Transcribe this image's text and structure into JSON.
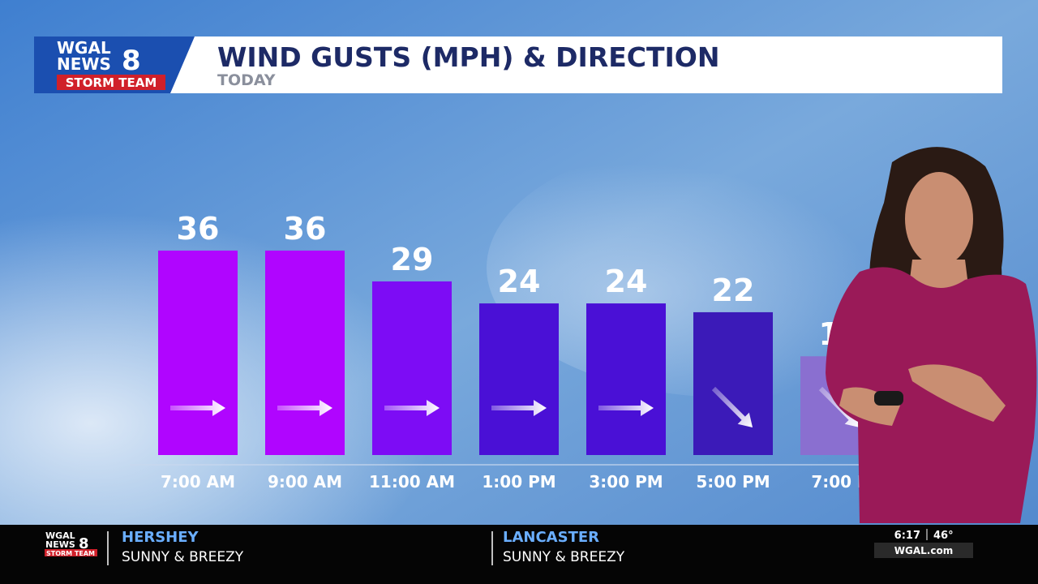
{
  "header": {
    "logo": {
      "line1": "WGAL",
      "line2": "NEWS",
      "number": "8",
      "line3": "STORM TEAM"
    },
    "title": "WIND GUSTS (MPH) & DIRECTION",
    "subtitle": "TODAY"
  },
  "chart_data": {
    "type": "bar",
    "categories": [
      "7:00 AM",
      "9:00 AM",
      "11:00 AM",
      "1:00 PM",
      "3:00 PM",
      "5:00 PM",
      "7:00 P"
    ],
    "values": [
      36,
      36,
      29,
      24,
      24,
      22,
      12
    ],
    "colors": [
      "#b005ff",
      "#b005ff",
      "#7d0cf5",
      "#4a10d6",
      "#4a10d6",
      "#3b1ab8",
      "#8a6fd0"
    ],
    "directions": [
      "E",
      "E",
      "E",
      "E",
      "E",
      "SE",
      "SE"
    ]
  },
  "ticker": {
    "logo": {
      "line1": "WGAL",
      "line2": "NEWS",
      "number": "8",
      "line3": "STORM TEAM"
    },
    "cities": [
      {
        "name": "HERSHEY",
        "condition": "SUNNY & BREEZY"
      },
      {
        "name": "LANCASTER",
        "condition": "SUNNY & BREEZY"
      }
    ],
    "time": "6:17",
    "temperature": "46°",
    "website": "WGAL.com"
  }
}
